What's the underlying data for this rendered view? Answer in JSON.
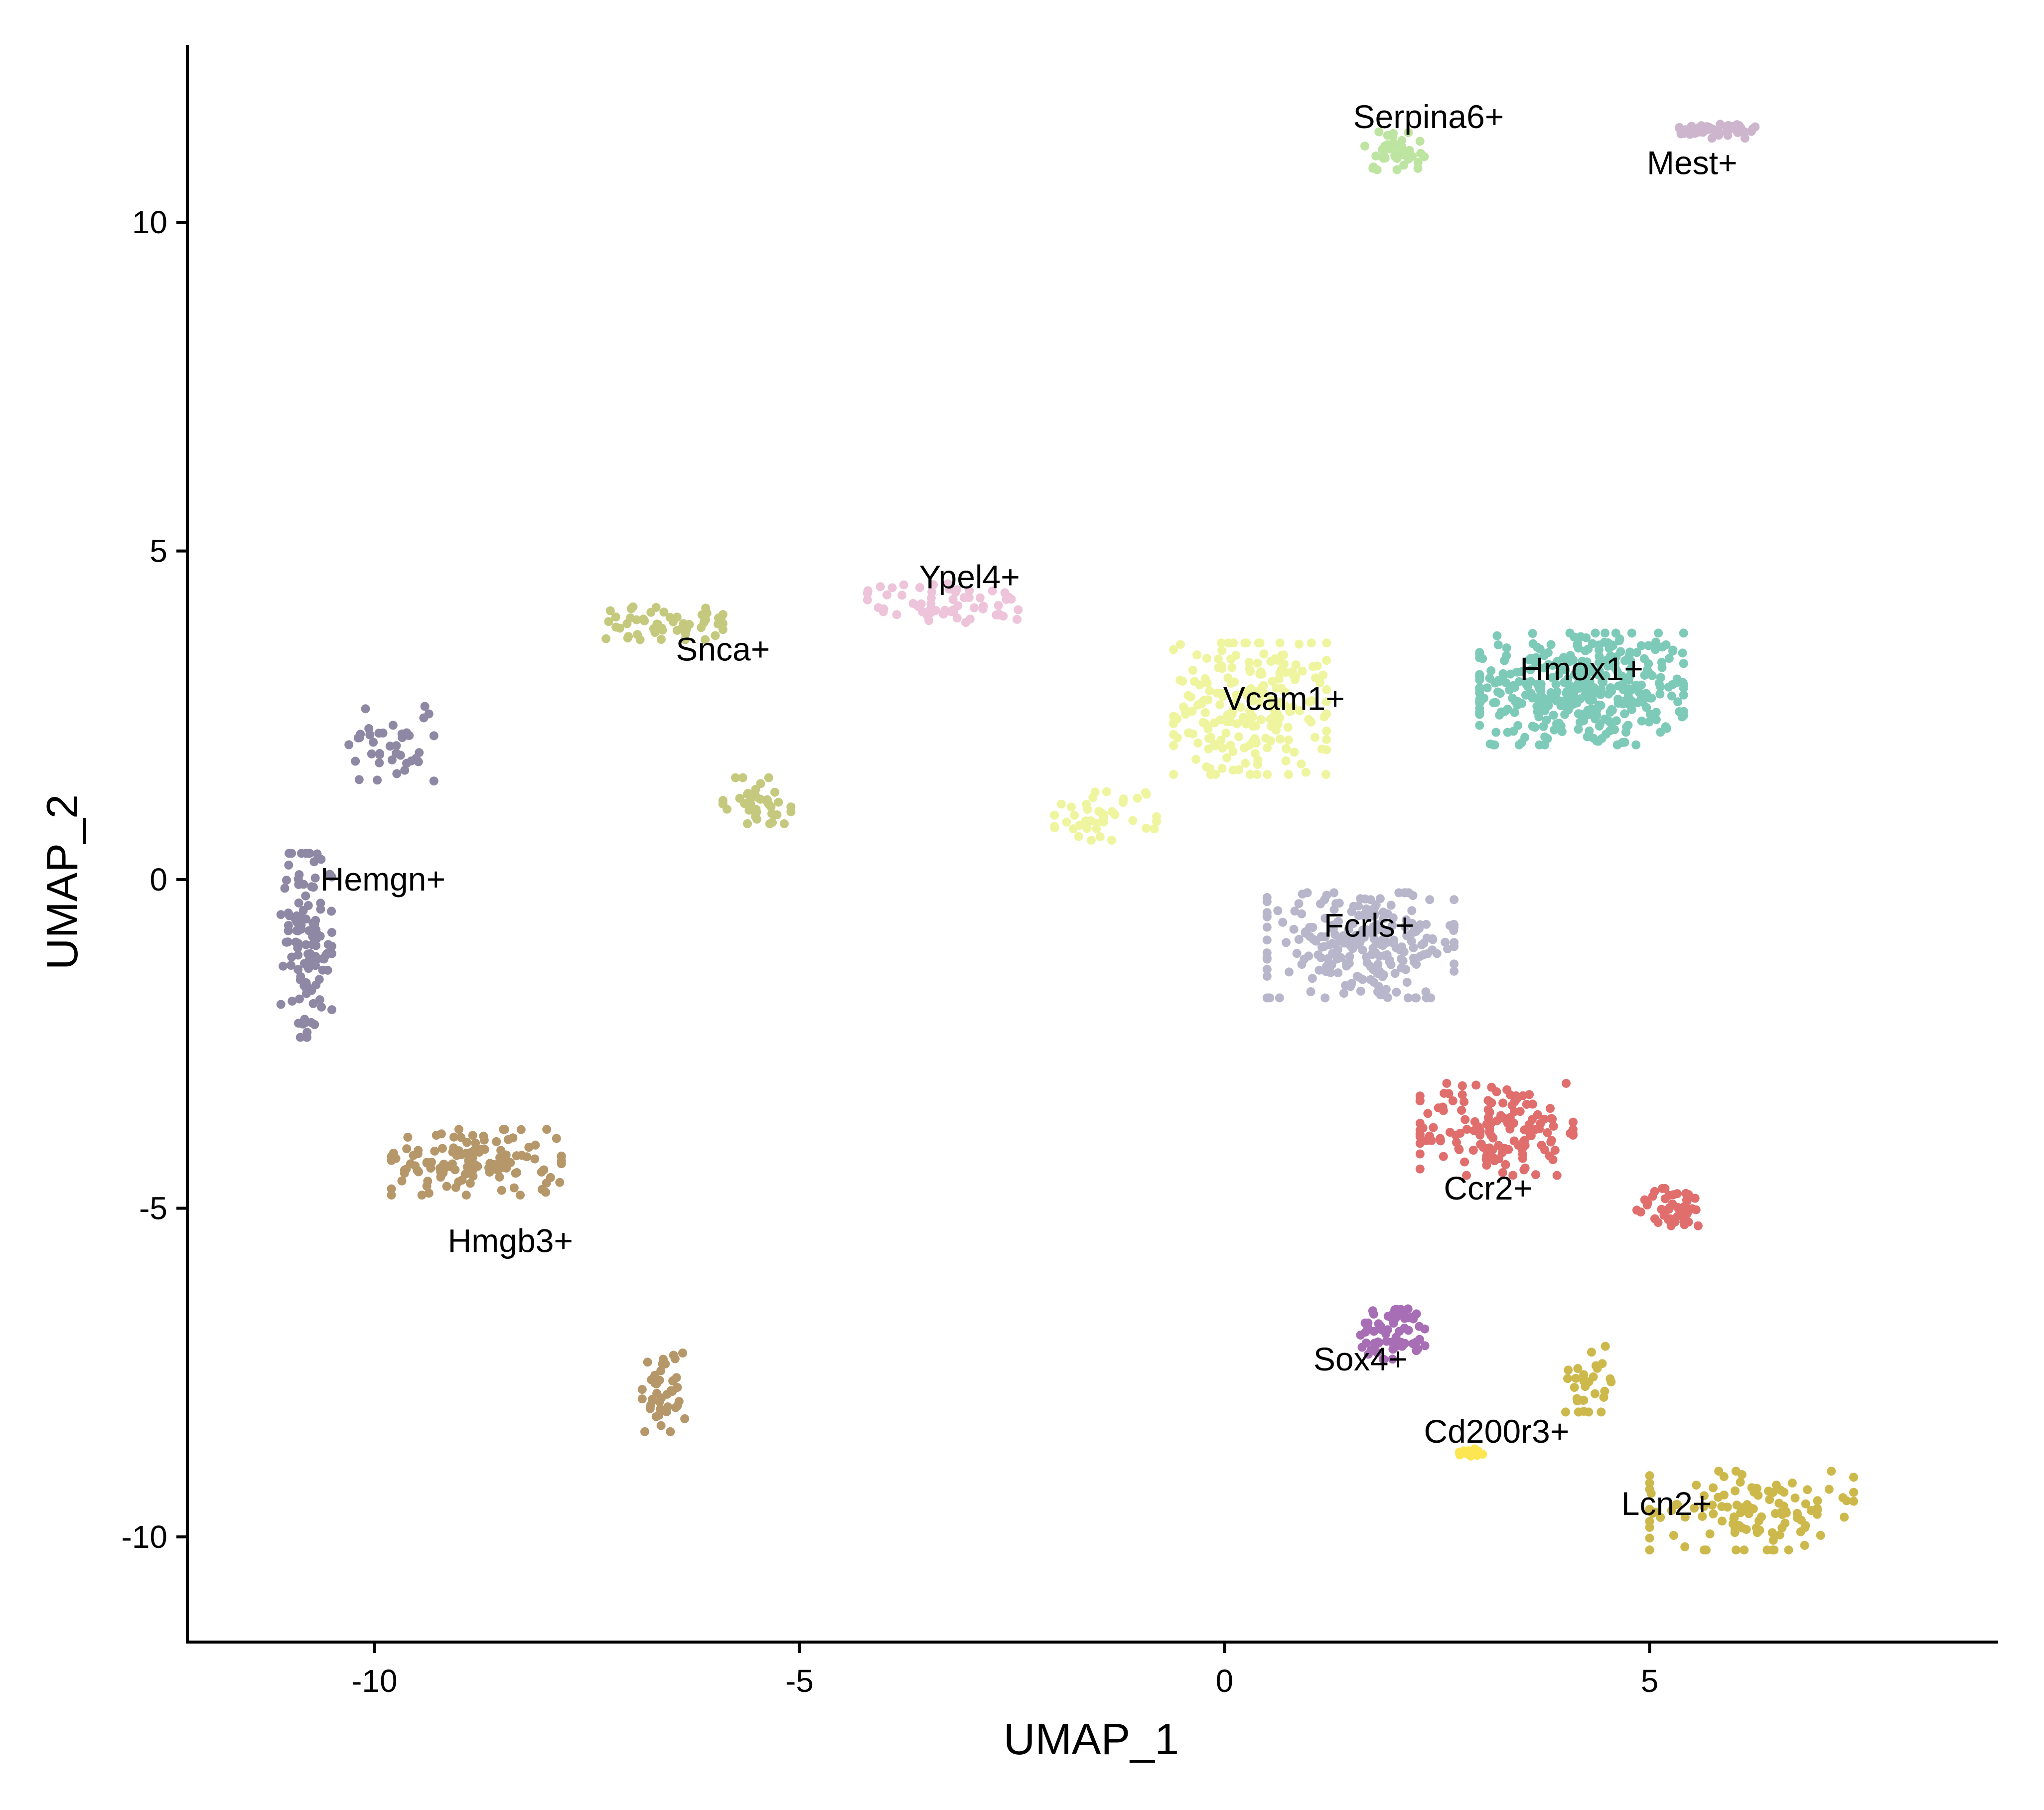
{
  "chart_data": {
    "type": "scatter",
    "title": "",
    "xlabel": "UMAP_1",
    "ylabel": "UMAP_2",
    "xlim": [
      -12.2,
      9.1
    ],
    "ylim": [
      -11.6,
      12.7
    ],
    "xticks": [
      -10,
      -5,
      0,
      5
    ],
    "xtick_labels": [
      "-10",
      "-5",
      "0",
      "5"
    ],
    "yticks": [
      -10,
      -5,
      0,
      5,
      10
    ],
    "ytick_labels": [
      "-10",
      "-5",
      "0",
      "5",
      "10"
    ],
    "grid": false,
    "legend": "none",
    "series": [
      {
        "name": "Hmox1+",
        "color": "#7ECAB8",
        "label_pos": [
          4.2,
          3.2
        ],
        "clusters": [
          {
            "cx": 4.2,
            "cy": 2.9,
            "sx": 1.2,
            "sy": 0.85,
            "n": 380,
            "rot": 0
          }
        ]
      },
      {
        "name": "Vcam1+",
        "color": "#EEF59E",
        "label_pos": [
          0.7,
          2.75
        ],
        "clusters": [
          {
            "cx": 0.3,
            "cy": 2.6,
            "sx": 0.9,
            "sy": 1.0,
            "n": 220,
            "rot": 0
          },
          {
            "cx": -1.4,
            "cy": 1.0,
            "sx": 0.6,
            "sy": 0.4,
            "n": 40,
            "rot": 0
          }
        ]
      },
      {
        "name": "Fcrls+",
        "color": "#B8B6CB",
        "label_pos": [
          1.7,
          -0.7
        ],
        "clusters": [
          {
            "cx": 1.6,
            "cy": -1.0,
            "sx": 1.1,
            "sy": 0.8,
            "n": 240,
            "rot": 0
          }
        ]
      },
      {
        "name": "Ccr2+",
        "color": "#E06E6C",
        "label_pos": [
          3.1,
          -4.7
        ],
        "clusters": [
          {
            "cx": 3.2,
            "cy": -3.8,
            "sx": 0.9,
            "sy": 0.7,
            "n": 150,
            "rot": 0
          },
          {
            "cx": 5.3,
            "cy": -5.0,
            "sx": 0.45,
            "sy": 0.3,
            "n": 45,
            "rot": 0
          }
        ]
      },
      {
        "name": "Sox4+",
        "color": "#A86EB5",
        "label_pos": [
          1.6,
          -7.3
        ],
        "clusters": [
          {
            "cx": 2.0,
            "cy": -6.9,
            "sx": 0.4,
            "sy": 0.4,
            "n": 65,
            "rot": 0
          }
        ]
      },
      {
        "name": "Cd200r3+",
        "color": "#FCE652",
        "label_pos": [
          3.2,
          -8.4
        ],
        "clusters": [
          {
            "cx": 2.9,
            "cy": -8.7,
            "sx": 0.15,
            "sy": 0.07,
            "n": 22,
            "rot": 0
          }
        ]
      },
      {
        "name": "Lcn2+",
        "color": "#CDB94B",
        "label_pos": [
          5.2,
          -9.5
        ],
        "clusters": [
          {
            "cx": 6.2,
            "cy": -9.6,
            "sx": 1.2,
            "sy": 0.6,
            "n": 120,
            "rot": 0
          },
          {
            "cx": 4.3,
            "cy": -7.6,
            "sx": 0.3,
            "sy": 0.5,
            "n": 30,
            "rot": 0
          }
        ]
      },
      {
        "name": "Hemgn+",
        "color": "#8E88A5",
        "label_pos": [
          -9.9,
          0.0
        ],
        "clusters": [
          {
            "cx": -10.8,
            "cy": -1.0,
            "sx": 0.3,
            "sy": 1.4,
            "n": 120,
            "rot": 0
          },
          {
            "cx": -9.8,
            "cy": 2.1,
            "sx": 0.5,
            "sy": 0.6,
            "n": 40,
            "rot": 0
          }
        ]
      },
      {
        "name": "Hmgb3+",
        "color": "#B5976A",
        "label_pos": [
          -8.4,
          -5.5
        ],
        "clusters": [
          {
            "cx": -8.8,
            "cy": -4.3,
            "sx": 1.0,
            "sy": 0.5,
            "n": 130,
            "rot": 0
          },
          {
            "cx": -6.6,
            "cy": -7.8,
            "sx": 0.25,
            "sy": 0.6,
            "n": 40,
            "rot": 0
          }
        ]
      },
      {
        "name": "Snca+",
        "color": "#C4C97E",
        "label_pos": [
          -5.9,
          3.5
        ],
        "clusters": [
          {
            "cx": -6.6,
            "cy": 3.9,
            "sx": 0.7,
            "sy": 0.25,
            "n": 55,
            "rot": 0
          },
          {
            "cx": -5.5,
            "cy": 1.2,
            "sx": 0.4,
            "sy": 0.35,
            "n": 40,
            "rot": 0
          }
        ]
      },
      {
        "name": "Ypel4+",
        "color": "#EDC4DA",
        "label_pos": [
          -3.0,
          4.6
        ],
        "clusters": [
          {
            "cx": -3.3,
            "cy": 4.2,
            "sx": 0.9,
            "sy": 0.3,
            "n": 60,
            "rot": 0
          }
        ]
      },
      {
        "name": "Serpina6+",
        "color": "#BDE5A1",
        "label_pos": [
          2.4,
          11.6
        ],
        "clusters": [
          {
            "cx": 2.0,
            "cy": 11.1,
            "sx": 0.35,
            "sy": 0.3,
            "n": 40,
            "rot": 0
          }
        ]
      },
      {
        "name": "Mest+",
        "color": "#CDB6CD",
        "label_pos": [
          5.5,
          10.9
        ],
        "clusters": [
          {
            "cx": 5.8,
            "cy": 11.4,
            "sx": 0.45,
            "sy": 0.12,
            "n": 55,
            "rot": 0
          }
        ]
      }
    ]
  }
}
